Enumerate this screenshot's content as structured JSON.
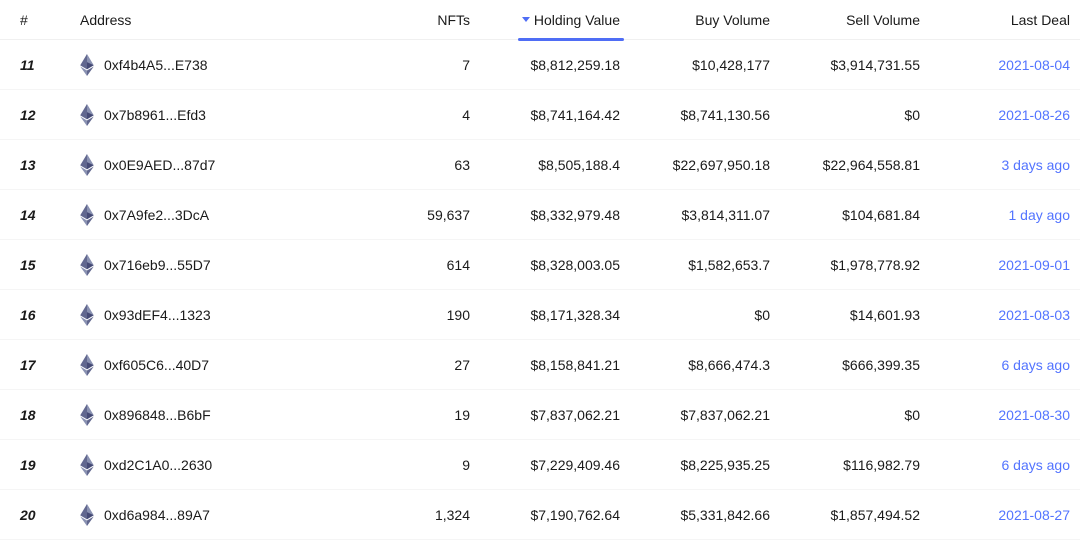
{
  "colors": {
    "text": "#1a1a1a",
    "link": "#5374ff",
    "accent": "#4f6df5",
    "row_border": "#f5f5f5",
    "eth_dark": "#62688f",
    "eth_light": "#8a92b2",
    "eth_mid": "#454a75"
  },
  "columns": {
    "rank": "#",
    "address": "Address",
    "nfts": "NFTs",
    "holding": "Holding Value",
    "buy": "Buy Volume",
    "sell": "Sell Volume",
    "last": "Last Deal"
  },
  "sorted_column": "holding",
  "sort_direction": "desc",
  "rows": [
    {
      "rank": "11",
      "address": "0xf4b4A5...E738",
      "nfts": "7",
      "holding": "$8,812,259.18",
      "buy": "$10,428,177",
      "sell": "$3,914,731.55",
      "last": "2021-08-04"
    },
    {
      "rank": "12",
      "address": "0x7b8961...Efd3",
      "nfts": "4",
      "holding": "$8,741,164.42",
      "buy": "$8,741,130.56",
      "sell": "$0",
      "last": "2021-08-26"
    },
    {
      "rank": "13",
      "address": "0x0E9AED...87d7",
      "nfts": "63",
      "holding": "$8,505,188.4",
      "buy": "$22,697,950.18",
      "sell": "$22,964,558.81",
      "last": "3 days ago"
    },
    {
      "rank": "14",
      "address": "0x7A9fe2...3DcA",
      "nfts": "59,637",
      "holding": "$8,332,979.48",
      "buy": "$3,814,311.07",
      "sell": "$104,681.84",
      "last": "1 day ago"
    },
    {
      "rank": "15",
      "address": "0x716eb9...55D7",
      "nfts": "614",
      "holding": "$8,328,003.05",
      "buy": "$1,582,653.7",
      "sell": "$1,978,778.92",
      "last": "2021-09-01"
    },
    {
      "rank": "16",
      "address": "0x93dEF4...1323",
      "nfts": "190",
      "holding": "$8,171,328.34",
      "buy": "$0",
      "sell": "$14,601.93",
      "last": "2021-08-03"
    },
    {
      "rank": "17",
      "address": "0xf605C6...40D7",
      "nfts": "27",
      "holding": "$8,158,841.21",
      "buy": "$8,666,474.3",
      "sell": "$666,399.35",
      "last": "6 days ago"
    },
    {
      "rank": "18",
      "address": "0x896848...B6bF",
      "nfts": "19",
      "holding": "$7,837,062.21",
      "buy": "$7,837,062.21",
      "sell": "$0",
      "last": "2021-08-30"
    },
    {
      "rank": "19",
      "address": "0xd2C1A0...2630",
      "nfts": "9",
      "holding": "$7,229,409.46",
      "buy": "$8,225,935.25",
      "sell": "$116,982.79",
      "last": "6 days ago"
    },
    {
      "rank": "20",
      "address": "0xd6a984...89A7",
      "nfts": "1,324",
      "holding": "$7,190,762.64",
      "buy": "$5,331,842.66",
      "sell": "$1,857,494.52",
      "last": "2021-08-27"
    }
  ]
}
